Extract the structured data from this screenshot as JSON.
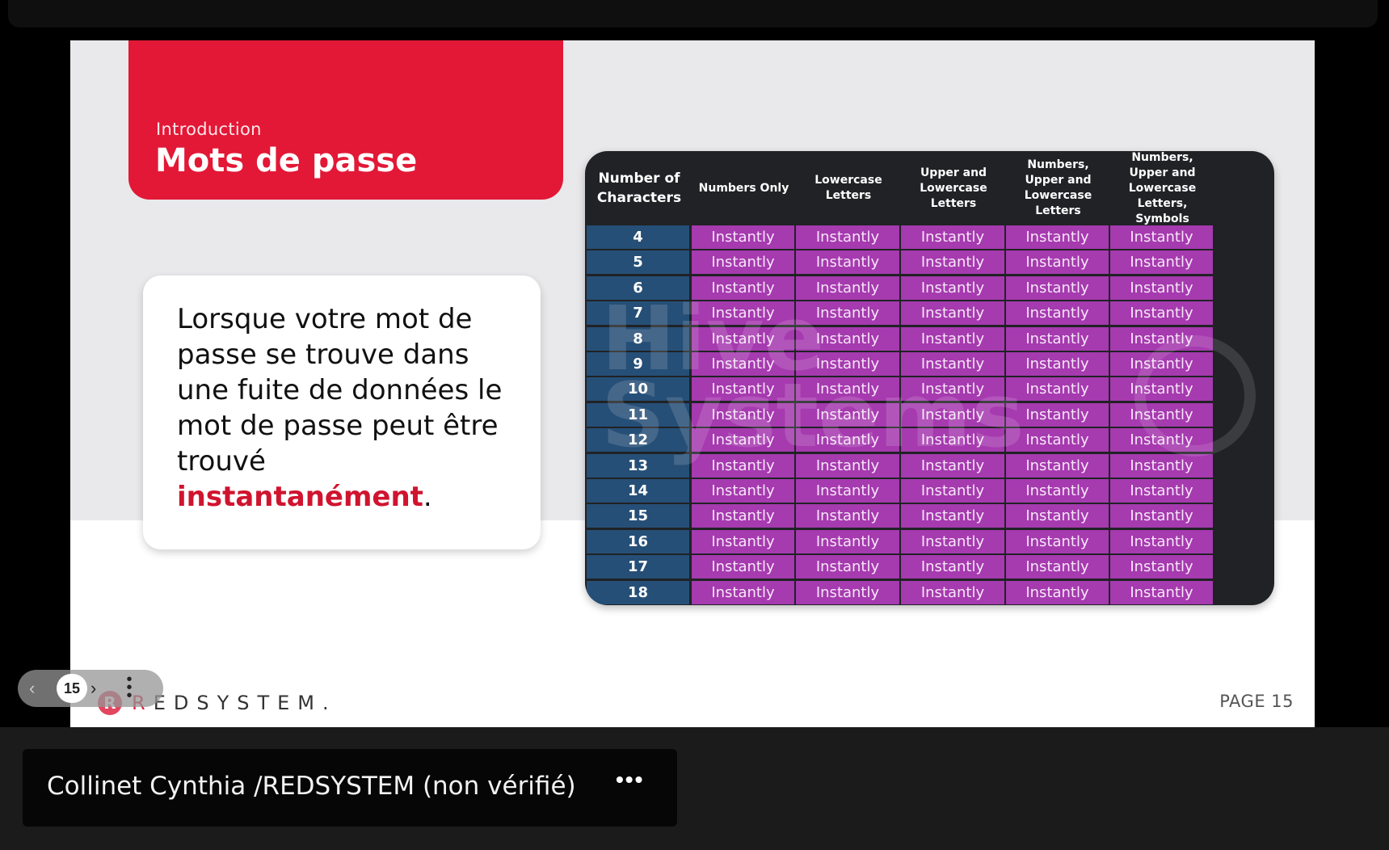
{
  "slide": {
    "kicker": "Introduction",
    "title": "Mots de passe",
    "body_text": "Lorsque votre mot de passe se trouve dans une fuite de données le mot de passe peut être trouvé ",
    "body_highlight": "instantanément",
    "body_end": ".",
    "page_label": "PAGE 15",
    "logo_letter": "R",
    "logo_text_first": "R",
    "logo_text_rest": "EDSYSTEM."
  },
  "table": {
    "headers": [
      "Number of Characters",
      "Numbers Only",
      "Lowercase Letters",
      "Upper and Lowercase Letters",
      "Numbers, Upper and Lowercase Letters",
      "Numbers, Upper and Lowercase Letters, Symbols"
    ],
    "rows": [
      {
        "n": "4",
        "v": [
          "Instantly",
          "Instantly",
          "Instantly",
          "Instantly",
          "Instantly"
        ]
      },
      {
        "n": "5",
        "v": [
          "Instantly",
          "Instantly",
          "Instantly",
          "Instantly",
          "Instantly"
        ]
      },
      {
        "n": "6",
        "v": [
          "Instantly",
          "Instantly",
          "Instantly",
          "Instantly",
          "Instantly"
        ]
      },
      {
        "n": "7",
        "v": [
          "Instantly",
          "Instantly",
          "Instantly",
          "Instantly",
          "Instantly"
        ]
      },
      {
        "n": "8",
        "v": [
          "Instantly",
          "Instantly",
          "Instantly",
          "Instantly",
          "Instantly"
        ]
      },
      {
        "n": "9",
        "v": [
          "Instantly",
          "Instantly",
          "Instantly",
          "Instantly",
          "Instantly"
        ]
      },
      {
        "n": "10",
        "v": [
          "Instantly",
          "Instantly",
          "Instantly",
          "Instantly",
          "Instantly"
        ]
      },
      {
        "n": "11",
        "v": [
          "Instantly",
          "Instantly",
          "Instantly",
          "Instantly",
          "Instantly"
        ]
      },
      {
        "n": "12",
        "v": [
          "Instantly",
          "Instantly",
          "Instantly",
          "Instantly",
          "Instantly"
        ]
      },
      {
        "n": "13",
        "v": [
          "Instantly",
          "Instantly",
          "Instantly",
          "Instantly",
          "Instantly"
        ]
      },
      {
        "n": "14",
        "v": [
          "Instantly",
          "Instantly",
          "Instantly",
          "Instantly",
          "Instantly"
        ]
      },
      {
        "n": "15",
        "v": [
          "Instantly",
          "Instantly",
          "Instantly",
          "Instantly",
          "Instantly"
        ]
      },
      {
        "n": "16",
        "v": [
          "Instantly",
          "Instantly",
          "Instantly",
          "Instantly",
          "Instantly"
        ]
      },
      {
        "n": "17",
        "v": [
          "Instantly",
          "Instantly",
          "Instantly",
          "Instantly",
          "Instantly"
        ]
      },
      {
        "n": "18",
        "v": [
          "Instantly",
          "Instantly",
          "Instantly",
          "Instantly",
          "Instantly"
        ]
      }
    ],
    "watermark": "Hive Systems"
  },
  "slide_nav": {
    "prev_icon": "chevron-left-icon",
    "current": "15",
    "next_icon": "chevron-right-icon",
    "more_icon": "vertical-ellipsis-icon"
  },
  "participant": {
    "name": "Collinet Cynthia /REDSYSTEM (non vérifié)",
    "more_label": "•••"
  },
  "colors": {
    "brand_red": "#e21836",
    "row_number_blue": "#264f77",
    "cell_purple": "#a63aaf",
    "table_dark": "#202225"
  }
}
